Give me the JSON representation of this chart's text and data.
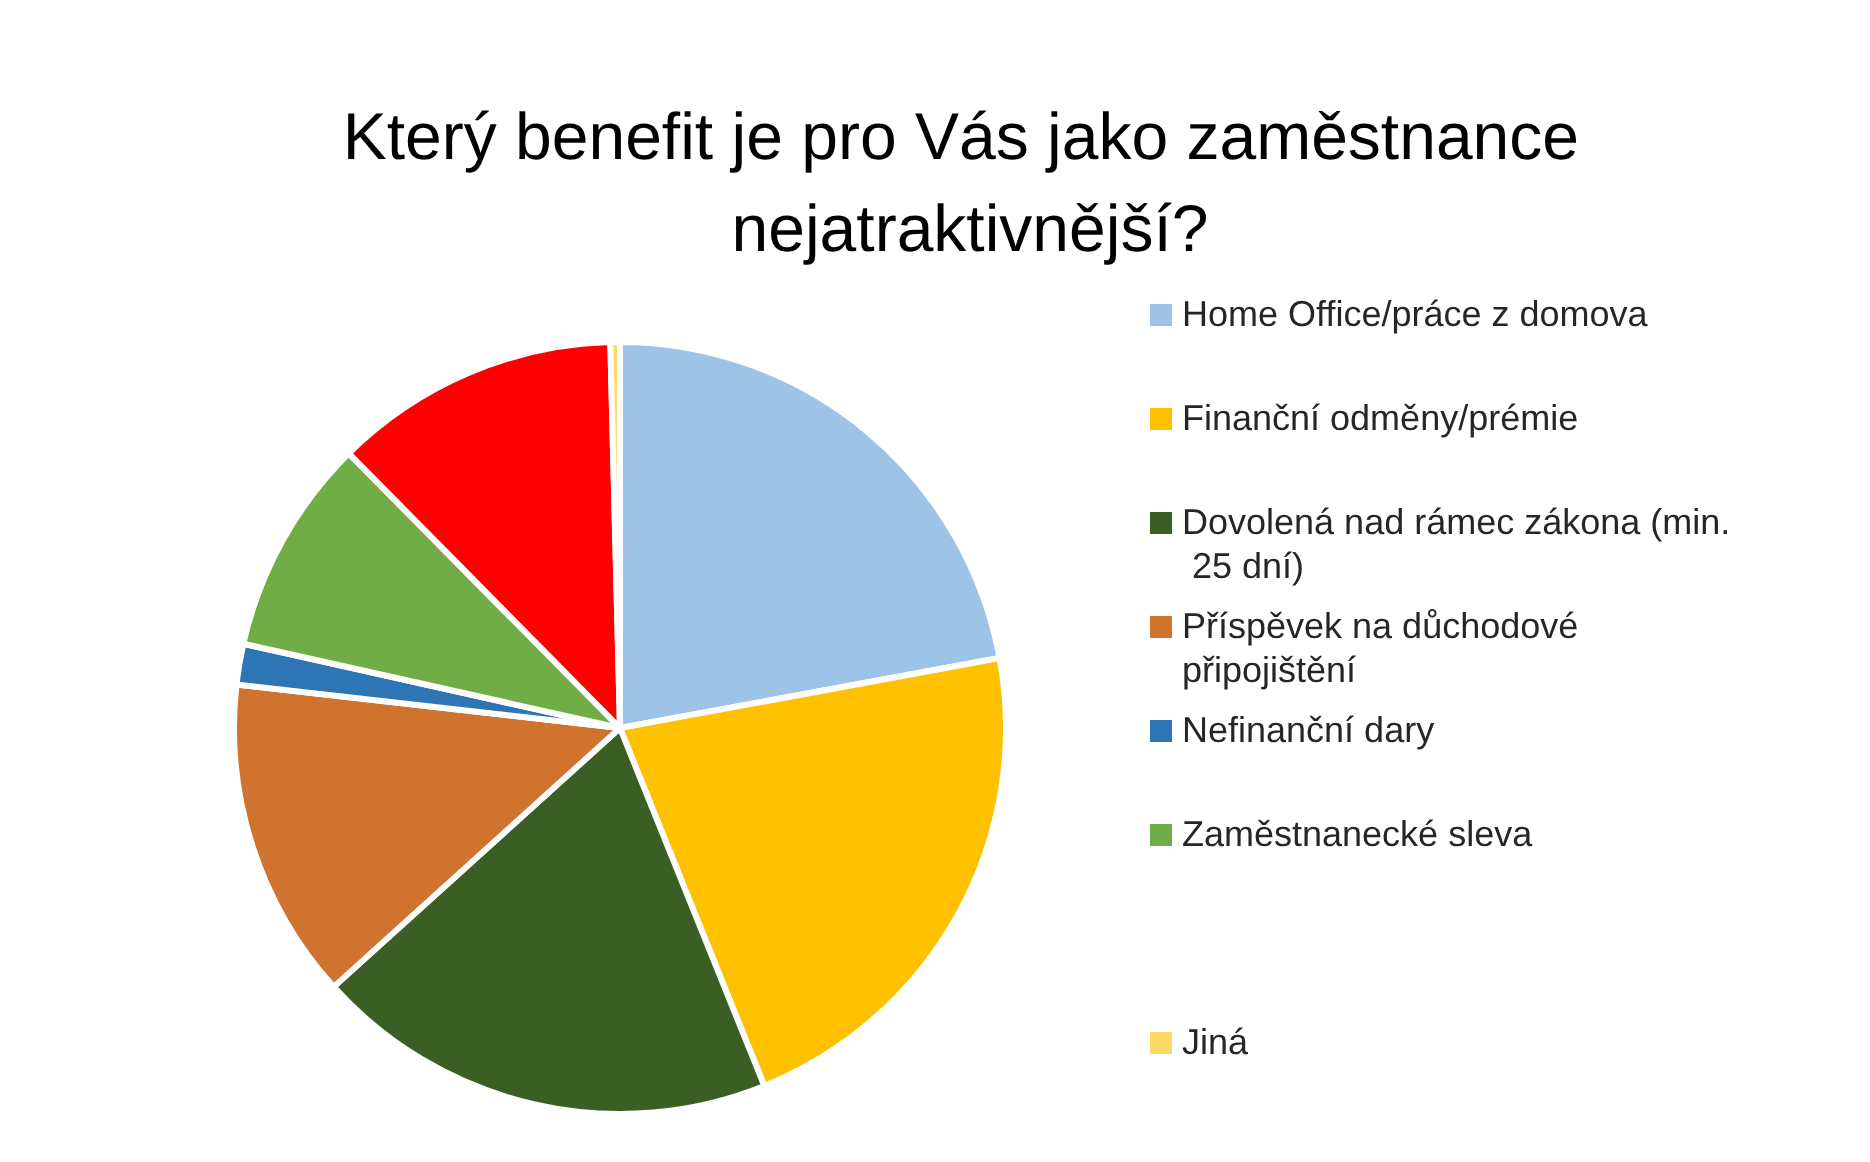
{
  "chart_data": {
    "type": "pie",
    "title": "Který benefit je pro Vás jako zaměstnance nejatraktivnější?",
    "categories": [
      "Home Office/práce z domova",
      "Finanční odměny/prémie",
      "Dovolená nad rámec zákona (min. 25 dní)",
      "Příspěvek na důchodové připojištění",
      "Nefinanční dary",
      "Zaměstnanecké sleva",
      null,
      "Jiná"
    ],
    "values": [
      22.1,
      21.8,
      19.4,
      13.5,
      1.7,
      9.1,
      12,
      0.4
    ],
    "colors": [
      "#9dc3e6",
      "#ffc000",
      "#3a5e24",
      "#d0732f",
      "#2e75b6",
      "#70ad47",
      "#ff0000",
      "#ffd966"
    ],
    "legend": "right"
  }
}
